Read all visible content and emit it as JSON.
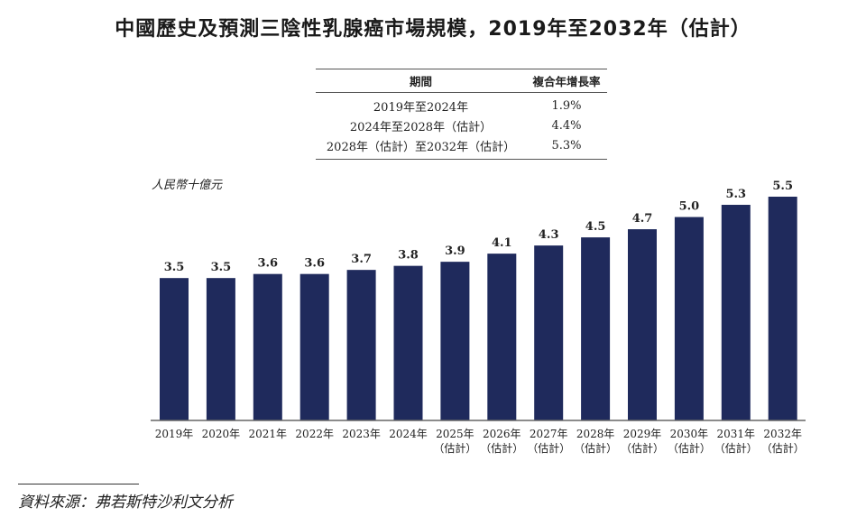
{
  "title": "中國歷史及預測三陰性乳腺癌市場規模，2019年至2032年（估計）",
  "cagr_table": {
    "headers": [
      "期間",
      "複合年增長率"
    ],
    "rows": [
      [
        "2019年至2024年",
        "1.9%"
      ],
      [
        "2024年至2028年（估計）",
        "4.4%"
      ],
      [
        "2028年（估計）至2032年（估計）",
        "5.3%"
      ]
    ]
  },
  "source": "資料來源：弗若斯特沙利文分析",
  "chart_data": {
    "type": "bar",
    "title": "中國歷史及預測三陰性乳腺癌市場規模，2019年至2032年（估計）",
    "ylabel": "人民幣十億元",
    "xlabel": "",
    "categories": [
      "2019年",
      "2020年",
      "2021年",
      "2022年",
      "2023年",
      "2024年",
      "2025年",
      "2026年",
      "2027年",
      "2028年",
      "2029年",
      "2030年",
      "2031年",
      "2032年"
    ],
    "category_sublabels": [
      "",
      "",
      "",
      "",
      "",
      "",
      "（估計）",
      "（估計）",
      "（估計）",
      "（估計）",
      "（估計）",
      "（估計）",
      "（估計）",
      "（估計）"
    ],
    "values": [
      3.5,
      3.5,
      3.6,
      3.6,
      3.7,
      3.8,
      3.9,
      4.1,
      4.3,
      4.5,
      4.7,
      5.0,
      5.3,
      5.5
    ],
    "value_labels": [
      "3.5",
      "3.5",
      "3.6",
      "3.6",
      "3.7",
      "3.8",
      "3.9",
      "4.1",
      "4.3",
      "4.5",
      "4.7",
      "5.0",
      "5.3",
      "5.5"
    ],
    "ylim": [
      0,
      5.5
    ],
    "grid": false,
    "bar_color": "#1f2a5c"
  }
}
